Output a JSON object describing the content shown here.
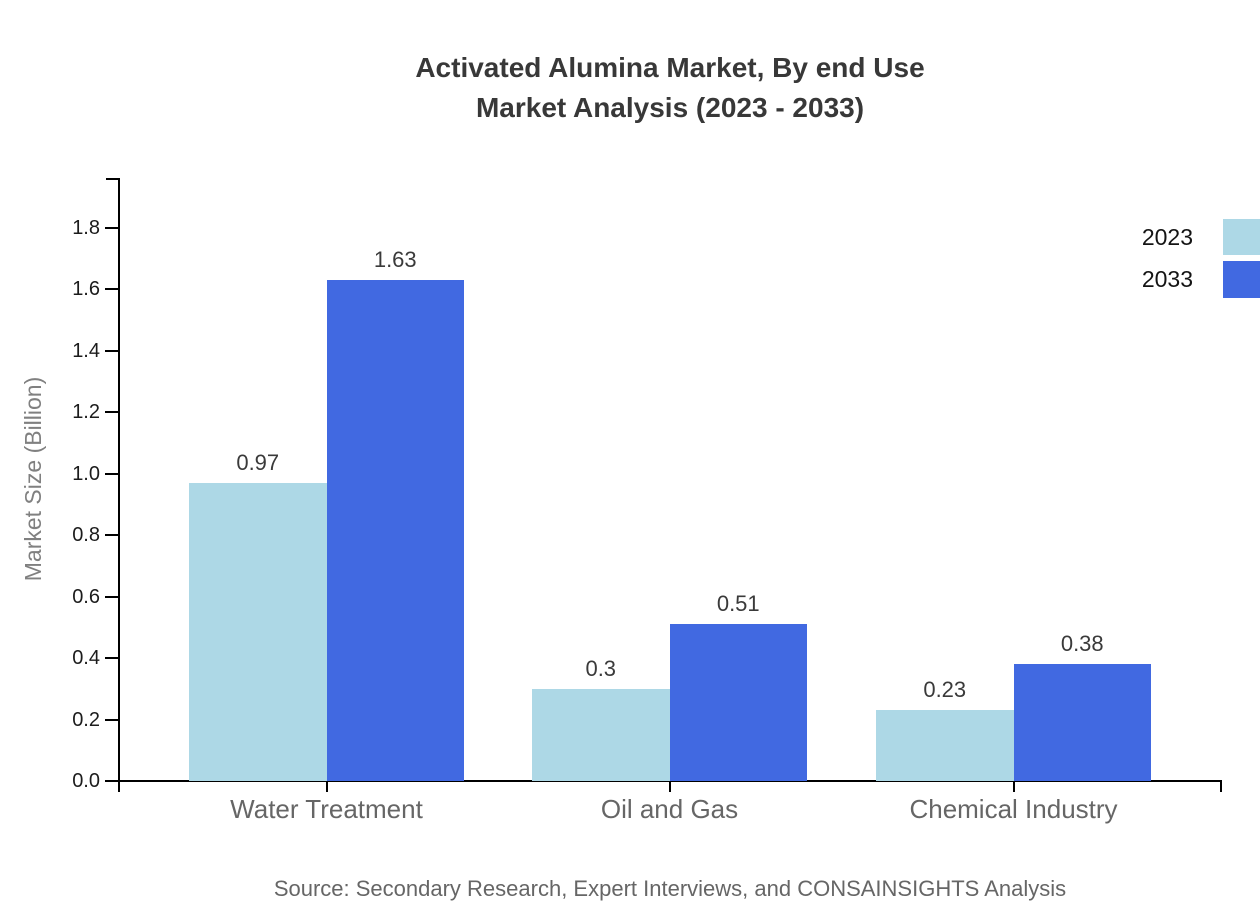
{
  "chart_data": {
    "type": "bar",
    "title_lines": [
      "Activated Alumina Market, By end Use",
      "Market Analysis (2023 - 2033)"
    ],
    "categories": [
      "Water Treatment",
      "Oil and Gas",
      "Chemical Industry"
    ],
    "series": [
      {
        "name": "2023",
        "color": "#add8e6",
        "values": [
          0.97,
          0.3,
          0.23
        ]
      },
      {
        "name": "2033",
        "color": "#4169e1",
        "values": [
          1.63,
          0.51,
          0.38
        ]
      }
    ],
    "ylabel": "Market Size (Billion)",
    "y_tick_labels": [
      "0.0",
      "0.2",
      "0.4",
      "0.6",
      "0.8",
      "1.0",
      "1.2",
      "1.4",
      "1.6",
      "1.8"
    ],
    "y_tick_values": [
      0.0,
      0.2,
      0.4,
      0.6,
      0.8,
      1.0,
      1.2,
      1.4,
      1.6,
      1.8
    ],
    "ylim": [
      0,
      1.95
    ],
    "grid": false,
    "legend_position": "upper-right",
    "axis_color": "#000000",
    "source_note": "Source: Secondary Research, Expert Interviews, and CONSAINSIGHTS Analysis"
  }
}
